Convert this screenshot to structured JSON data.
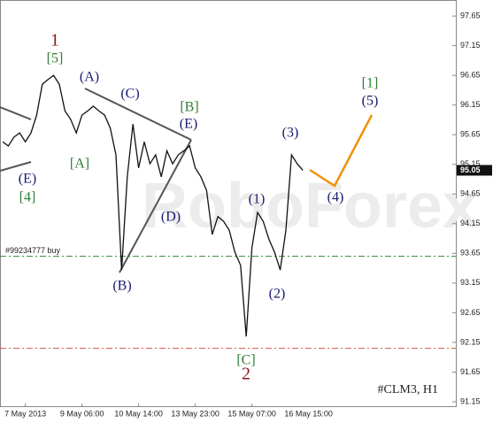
{
  "chart_data": {
    "type": "line",
    "title": "#CLM3, H1",
    "watermark": "RoboForex",
    "categories": [
      null,
      null,
      null,
      null,
      "7 May 2013",
      null,
      null,
      null,
      null,
      null,
      null,
      null,
      null,
      null,
      "9 May 06:00",
      null,
      null,
      null,
      null,
      null,
      null,
      null,
      null,
      null,
      "10 May 14:00",
      null,
      null,
      null,
      null,
      null,
      null,
      null,
      null,
      null,
      "13 May 23:00",
      null,
      null,
      null,
      null,
      null,
      null,
      null,
      null,
      null,
      "15 May 07:00",
      null,
      null,
      null,
      null,
      null,
      null,
      null,
      null,
      null
    ],
    "values": [
      95.53,
      95.46,
      95.61,
      95.68,
      95.53,
      95.68,
      95.98,
      96.5,
      96.58,
      96.65,
      96.5,
      96.05,
      95.91,
      95.68,
      95.98,
      96.05,
      96.13,
      96.05,
      95.98,
      95.76,
      95.31,
      93.37,
      94.94,
      95.83,
      95.09,
      95.53,
      95.16,
      95.31,
      94.94,
      95.38,
      95.16,
      95.31,
      95.38,
      95.46,
      95.09,
      94.94,
      94.71,
      93.97,
      94.27,
      94.19,
      94.04,
      93.67,
      93.45,
      92.25,
      93.74,
      94.34,
      94.19,
      93.89,
      93.67,
      93.37,
      94.04,
      95.31,
      95.16,
      95.05
    ],
    "x_labels_extra": [
      "16 May 15:00"
    ],
    "color": "#111111",
    "current_price": 95.05,
    "buy_level": 93.6,
    "buy_label": "#99234777 buy",
    "buy_color": "#2e8b2e",
    "stop_level": 92.05,
    "stop_color": "#d2553a",
    "ylim": [
      91.06,
      97.92
    ],
    "yticks": [
      97.65,
      97.15,
      96.65,
      96.15,
      95.65,
      95.15,
      94.65,
      94.15,
      93.65,
      93.15,
      92.65,
      92.15,
      91.65,
      91.15
    ],
    "annotations": [
      {
        "text": "1",
        "color": "#8b1a1a"
      },
      {
        "text": "[5]",
        "color": "#2e7d32"
      },
      {
        "text": "(A)",
        "color": "#1a1a6e"
      },
      {
        "text": "(C)",
        "color": "#1a1a6e"
      },
      {
        "text": "[B]",
        "color": "#2e7d32"
      },
      {
        "text": "(E)",
        "color": "#1a1a6e"
      },
      {
        "text": "[A]",
        "color": "#2e7d32"
      },
      {
        "text": "(E)",
        "color": "#1a1a6e"
      },
      {
        "text": "[4]",
        "color": "#2e7d32"
      },
      {
        "text": "(D)",
        "color": "#1a1a6e"
      },
      {
        "text": "(B)",
        "color": "#1a1a6e"
      },
      {
        "text": "(1)",
        "color": "#1a1a6e"
      },
      {
        "text": "(2)",
        "color": "#1a1a6e"
      },
      {
        "text": "(3)",
        "color": "#1a1a6e"
      },
      {
        "text": "(4)",
        "color": "#1a1a6e"
      },
      {
        "text": "[1]",
        "color": "#2e7d32"
      },
      {
        "text": "(5)",
        "color": "#1a1a6e"
      },
      {
        "text": "[C]",
        "color": "#2e7d32"
      },
      {
        "text": "2",
        "color": "#8b1a1a"
      }
    ]
  }
}
